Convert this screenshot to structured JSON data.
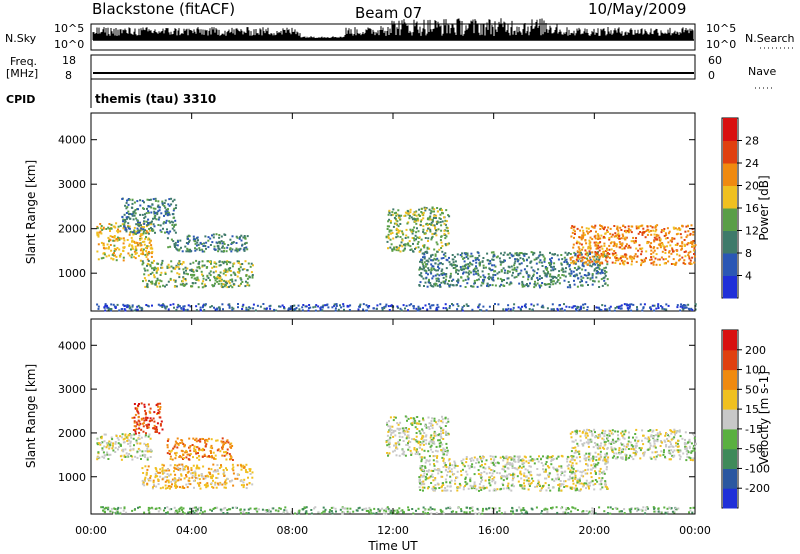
{
  "header": {
    "station": "Blackstone (fitACF)",
    "beam": "Beam 07",
    "date": "10/May/2009"
  },
  "status_panels": {
    "nsky": {
      "label": "N.Sky",
      "tick_top": "10^5",
      "tick_bottom": "10^0"
    },
    "nsearch": {
      "label": "N.Search",
      "tick_top": "10^5",
      "tick_bottom": "10^0"
    },
    "freq": {
      "label_line1": "Freq.",
      "label_line2": "[MHz]",
      "tick_top": "18",
      "tick_bottom": "8",
      "value": 10
    },
    "nave": {
      "label": "Nave",
      "tick_top": "60",
      "tick_bottom": "0"
    },
    "cpid": {
      "label": "CPID",
      "text": "themis (tau) 3310"
    }
  },
  "chart_data": [
    {
      "type": "heatmap",
      "name": "power",
      "ylabel": "Slant Range [km]",
      "yticks": [
        "1000",
        "2000",
        "3000",
        "4000"
      ],
      "ylim": [
        150,
        4600
      ],
      "xlim": [
        0,
        24
      ],
      "xticks": [
        0,
        4,
        8,
        12,
        16,
        20,
        24
      ],
      "colorbar": {
        "label": "Power [dB]",
        "ticks": [
          "4",
          "8",
          "12",
          "16",
          "20",
          "24",
          "28"
        ],
        "colors": [
          "#1f2fd8",
          "#2b57b5",
          "#3f7a6a",
          "#5a9e48",
          "#f0c020",
          "#f08a10",
          "#e04010",
          "#d81010"
        ]
      },
      "echo_regions": [
        {
          "t0": 0.2,
          "t1": 2.4,
          "r0": 1300,
          "r1": 2150,
          "level": 4
        },
        {
          "t0": 1.2,
          "t1": 3.4,
          "r0": 1900,
          "r1": 2700,
          "level": 2
        },
        {
          "t0": 2.0,
          "t1": 6.4,
          "r0": 700,
          "r1": 1300,
          "level": 3
        },
        {
          "t0": 3.0,
          "t1": 6.2,
          "r0": 1500,
          "r1": 1900,
          "level": 2
        },
        {
          "t0": 11.7,
          "t1": 14.2,
          "r0": 1500,
          "r1": 2500,
          "level": 3
        },
        {
          "t0": 13.0,
          "t1": 20.5,
          "r0": 700,
          "r1": 1500,
          "level": 2
        },
        {
          "t0": 19.0,
          "t1": 24.0,
          "r0": 1200,
          "r1": 2100,
          "level": 5
        },
        {
          "t0": 0.2,
          "t1": 24.0,
          "r0": 180,
          "r1": 330,
          "level": 1
        }
      ]
    },
    {
      "type": "heatmap",
      "name": "velocity",
      "ylabel": "Slant Range [km]",
      "xlabel": "Time UT",
      "yticks": [
        "1000",
        "2000",
        "3000",
        "4000"
      ],
      "ylim": [
        150,
        4600
      ],
      "xlim": [
        0,
        24
      ],
      "xticks": [
        0,
        4,
        8,
        12,
        16,
        20,
        24
      ],
      "xtick_labels": [
        "00:00",
        "04:00",
        "08:00",
        "12:00",
        "16:00",
        "20:00",
        "00:00"
      ],
      "colorbar": {
        "label": "Velocity [m s-1]",
        "ticks": [
          "200",
          "100",
          "50",
          "15",
          "-15",
          "-50",
          "-100",
          "-200"
        ],
        "colors": [
          "#1f2fd8",
          "#2b57a0",
          "#3f8a5a",
          "#5ab040",
          "#c8c8c8",
          "#f0c020",
          "#f08a10",
          "#e04010",
          "#d81010"
        ]
      },
      "echo_regions": [
        {
          "t0": 0.2,
          "t1": 2.4,
          "r0": 1400,
          "r1": 2000,
          "level": 4
        },
        {
          "t0": 1.6,
          "t1": 2.8,
          "r0": 2000,
          "r1": 2700,
          "level": 7
        },
        {
          "t0": 2.0,
          "t1": 6.4,
          "r0": 750,
          "r1": 1300,
          "level": 5
        },
        {
          "t0": 3.0,
          "t1": 5.6,
          "r0": 1400,
          "r1": 1900,
          "level": 6
        },
        {
          "t0": 11.7,
          "t1": 14.2,
          "r0": 1500,
          "r1": 2400,
          "level": 4
        },
        {
          "t0": 13.0,
          "t1": 20.5,
          "r0": 700,
          "r1": 1500,
          "level": 4
        },
        {
          "t0": 19.0,
          "t1": 24.0,
          "r0": 1400,
          "r1": 2100,
          "level": 4
        },
        {
          "t0": 0.2,
          "t1": 24.0,
          "r0": 180,
          "r1": 330,
          "level": 3
        }
      ]
    }
  ]
}
